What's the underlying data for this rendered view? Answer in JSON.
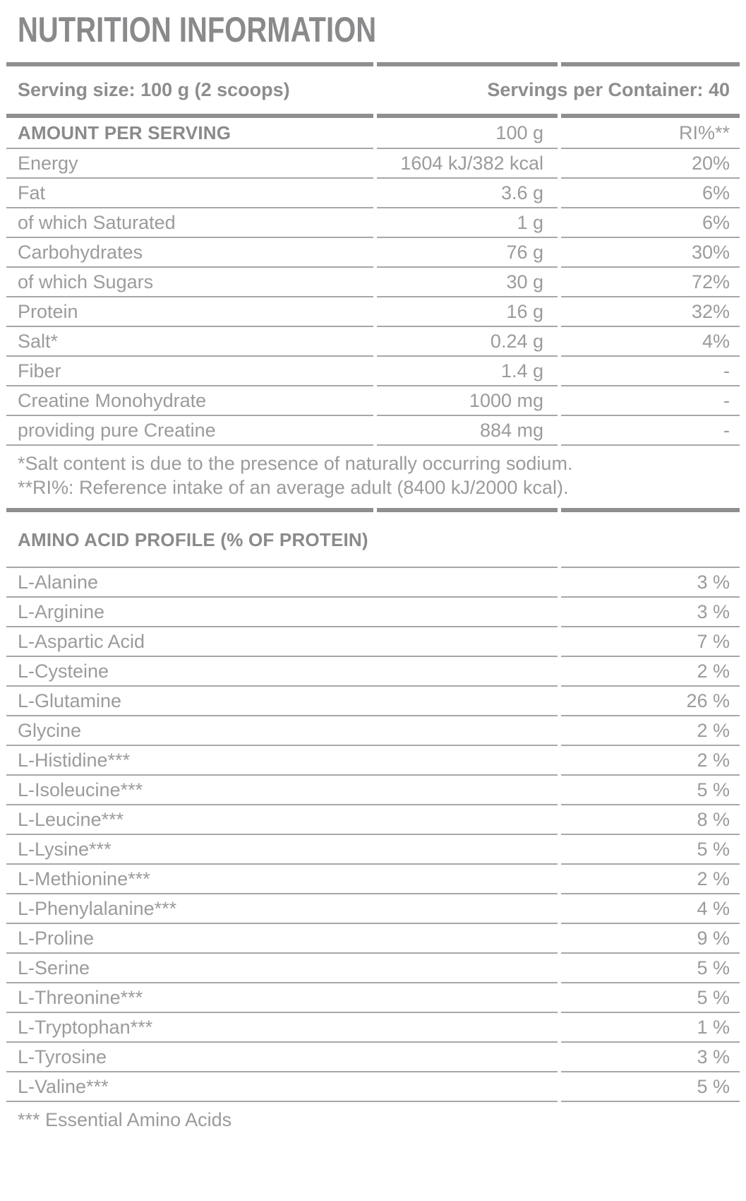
{
  "colors": {
    "title_text": "#8a8a8c",
    "body_text": "#9b9b9d",
    "thin_line": "#a7a7a9",
    "thick_line": "#8f8f91",
    "background": "#ffffff"
  },
  "header": {
    "title": "NUTRITION INFORMATION"
  },
  "serving": {
    "size": "Serving size: 100 g (2 scoops)",
    "per_container": "Servings per Container: 40"
  },
  "amount_table": {
    "header": {
      "name": "AMOUNT PER SERVING",
      "amount": "100 g",
      "ri": "RI%**"
    },
    "rows": [
      {
        "name": "Energy",
        "amount": "1604 kJ/382 kcal",
        "ri": "20%"
      },
      {
        "name": "Fat",
        "amount": "3.6 g",
        "ri": "6%"
      },
      {
        "name": "of which Saturated",
        "amount": "1 g",
        "ri": "6%"
      },
      {
        "name": "Carbohydrates",
        "amount": "76 g",
        "ri": "30%"
      },
      {
        "name": "of which Sugars",
        "amount": "30 g",
        "ri": "72%"
      },
      {
        "name": "Protein",
        "amount": "16 g",
        "ri": "32%"
      },
      {
        "name": "Salt*",
        "amount": "0.24 g",
        "ri": "4%"
      },
      {
        "name": "Fiber",
        "amount": "1.4 g",
        "ri": "-"
      },
      {
        "name": "Creatine Monohydrate",
        "amount": "1000 mg",
        "ri": "-"
      },
      {
        "name": "providing pure Creatine",
        "amount": "884 mg",
        "ri": "-"
      }
    ]
  },
  "footnotes": {
    "salt": "*Salt content is due to the presence of naturally occurring sodium.",
    "ri": "**RI%: Reference intake of an average adult (8400 kJ/2000 kcal)."
  },
  "amino": {
    "heading": "AMINO ACID PROFILE (% OF PROTEIN)",
    "rows": [
      {
        "name": "L-Alanine",
        "value": "3 %"
      },
      {
        "name": "L-Arginine",
        "value": "3 %"
      },
      {
        "name": "L-Aspartic Acid",
        "value": "7 %"
      },
      {
        "name": "L-Cysteine",
        "value": "2 %"
      },
      {
        "name": "L-Glutamine",
        "value": "26 %"
      },
      {
        "name": "Glycine",
        "value": "2 %"
      },
      {
        "name": "L-Histidine***",
        "value": "2 %"
      },
      {
        "name": "L-Isoleucine***",
        "value": "5 %"
      },
      {
        "name": "L-Leucine***",
        "value": "8 %"
      },
      {
        "name": "L-Lysine***",
        "value": "5 %"
      },
      {
        "name": "L-Methionine***",
        "value": "2 %"
      },
      {
        "name": "L-Phenylalanine***",
        "value": "4 %"
      },
      {
        "name": "L-Proline",
        "value": "9 %"
      },
      {
        "name": "L-Serine",
        "value": "5 %"
      },
      {
        "name": "L-Threonine***",
        "value": "5 %"
      },
      {
        "name": "L-Tryptophan***",
        "value": "1 %"
      },
      {
        "name": "L-Tyrosine",
        "value": "3 %"
      },
      {
        "name": "L-Valine***",
        "value": "5 %"
      }
    ],
    "footnote": "*** Essential Amino Acids"
  }
}
